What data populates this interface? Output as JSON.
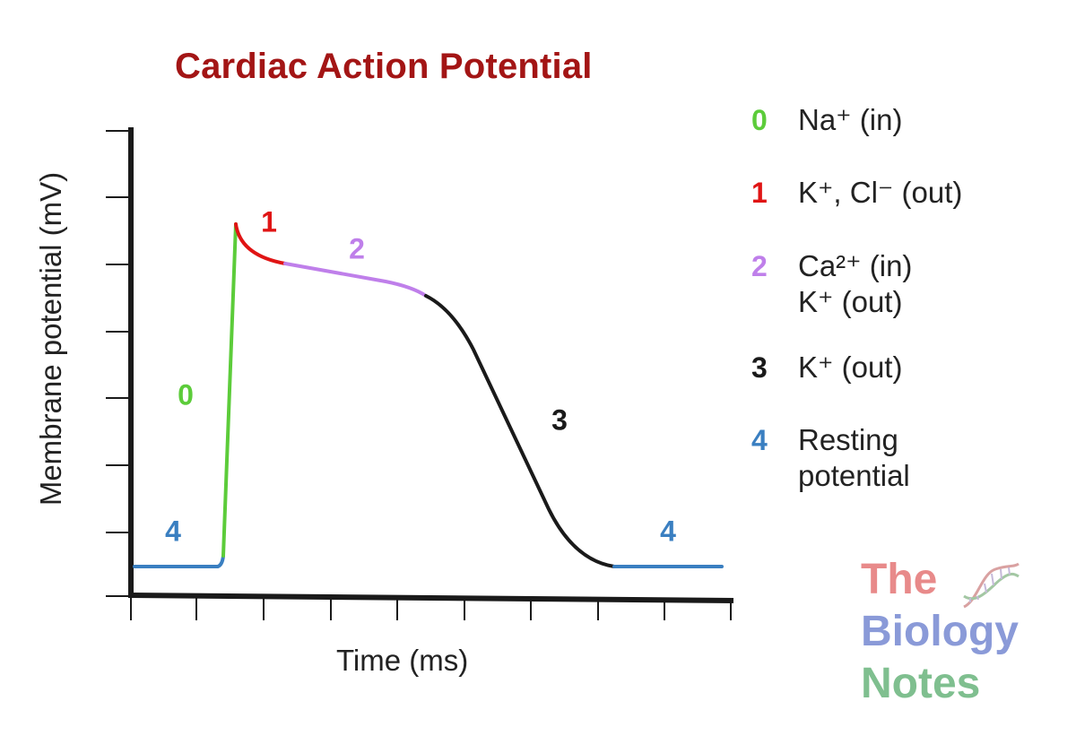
{
  "title": "Cardiac Action Potential",
  "axes": {
    "y_label": "Membrane potential (mV)",
    "x_label": "Time (ms)"
  },
  "phase_labels": [
    {
      "id": "0",
      "text": "0",
      "color": "#5ccc3a"
    },
    {
      "id": "1",
      "text": "1",
      "color": "#e01414"
    },
    {
      "id": "2",
      "text": "2",
      "color": "#bf7fea"
    },
    {
      "id": "3",
      "text": "3",
      "color": "#1a1a1a"
    },
    {
      "id": "4a",
      "text": "4",
      "color": "#3a7fc1"
    },
    {
      "id": "4b",
      "text": "4",
      "color": "#3a7fc1"
    }
  ],
  "legend": [
    {
      "num": "0",
      "color": "#5ccc3a",
      "lines": [
        "Na⁺ (in)"
      ]
    },
    {
      "num": "1",
      "color": "#e01414",
      "lines": [
        "K⁺, Cl⁻ (out)"
      ]
    },
    {
      "num": "2",
      "color": "#bf7fea",
      "lines": [
        "Ca²⁺ (in)",
        "K⁺ (out)"
      ]
    },
    {
      "num": "3",
      "color": "#1a1a1a",
      "lines": [
        "K⁺ (out)"
      ]
    },
    {
      "num": "4",
      "color": "#3a7fc1",
      "lines": [
        "Resting",
        "potential"
      ]
    }
  ],
  "logo": {
    "line1": "The",
    "line2": "Biology",
    "line3": "Notes",
    "colors": {
      "the": "#e88a8a",
      "biology": "#8a9ad8",
      "notes": "#7fbf8f"
    }
  },
  "colors": {
    "phase0": "#5ccc3a",
    "phase1": "#e01414",
    "phase2": "#bf7fea",
    "phase3": "#1a1a1a",
    "phase4": "#3a7fc1",
    "title": "#a31515",
    "axis": "#1a1a1a"
  }
}
